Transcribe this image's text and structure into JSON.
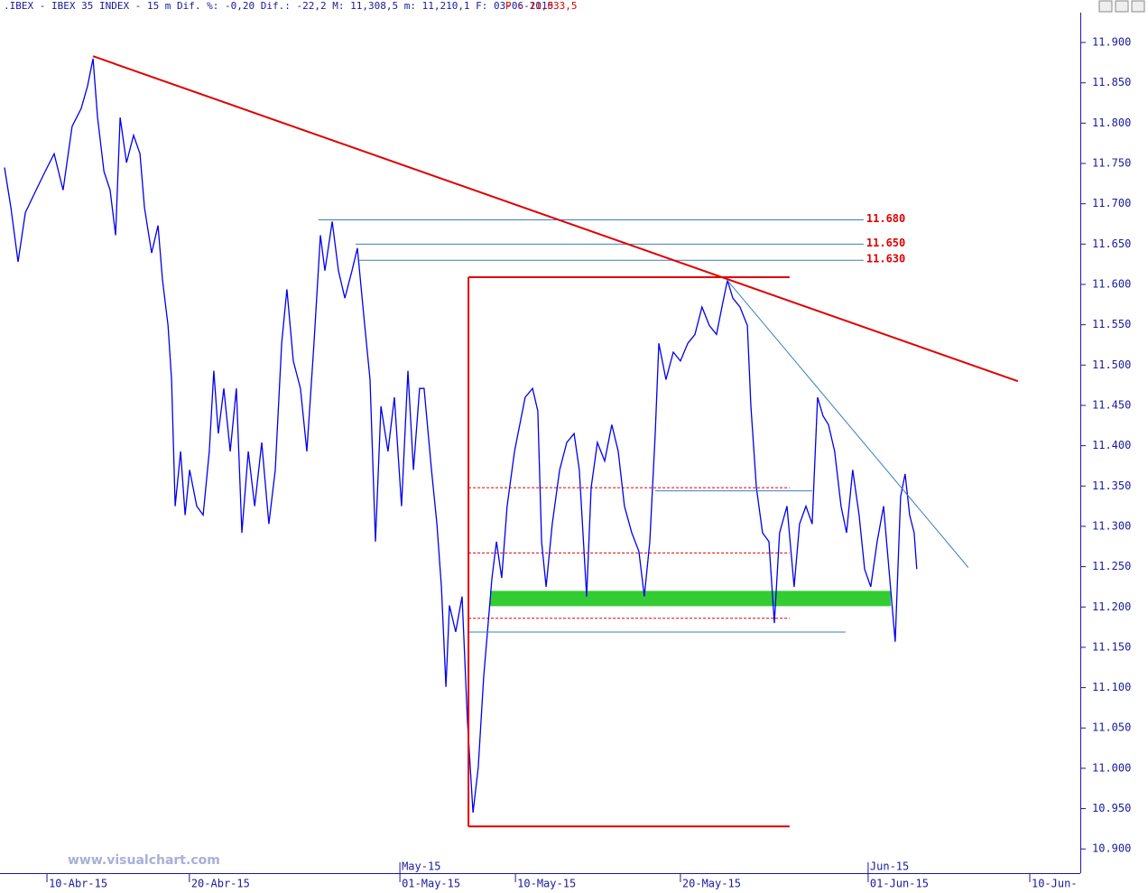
{
  "chart_data": {
    "type": "line",
    "title": ".IBEX - IBEX 35 INDEX -  15 m Dif. %: -0,20 Dif.: -22,2 M: 11,308,5 m: 11,210,1 F: 03-06-2015",
    "price_label": "P : 11,033,5",
    "watermark": "www.visualchart.com",
    "color": "#0000ee",
    "x": [
      -1.79,
      -1.52,
      -1.22,
      -0.91,
      -0.46,
      -0.08,
      0.3,
      0.68,
      1.06,
      1.44,
      1.71,
      1.94,
      2.13,
      2.4,
      2.66,
      2.89,
      3.08,
      3.35,
      3.65,
      3.92,
      4.11,
      4.41,
      4.68,
      4.87,
      5.1,
      5.25,
      5.4,
      5.63,
      5.82,
      6.01,
      6.31,
      6.58,
      6.84,
      7.03,
      7.22,
      7.45,
      7.72,
      7.98,
      8.21,
      8.48,
      8.75,
      9.05,
      9.35,
      9.62,
      9.89,
      10.11,
      10.38,
      10.68,
      10.95,
      11.25,
      11.52,
      11.71,
      12.02,
      12.28,
      12.55,
      12.85,
      13.08,
      13.35,
      13.61,
      13.84,
      14.07,
      14.37,
      14.64,
      14.94,
      15.21,
      15.44,
      15.7,
      15.89,
      16.2,
      16.43,
      16.62,
      16.81,
      16.96,
      17.22,
      17.49,
      17.72,
      17.95,
      18.17,
      18.4,
      18.56,
      18.75,
      18.94,
      19.16,
      19.39,
      19.7,
      19.92,
      20.15,
      20.46,
      20.68,
      20.84,
      21.03,
      21.29,
      21.6,
      21.9,
      22.21,
      22.43,
      22.74,
      22.93,
      23.19,
      23.5,
      23.8,
      24.07,
      24.33,
      24.64,
      24.94,
      25.17,
      25.4,
      25.63,
      25.78,
      26.08,
      26.39,
      26.69,
      27.0,
      27.3,
      27.6,
      27.91,
      28.21,
      28.44,
      28.67,
      28.9,
      29.2,
      29.51,
      29.66,
      29.89,
      30.15,
      30.42,
      30.65,
      30.87,
      31.18,
      31.48,
      31.71,
      31.98,
      32.24,
      32.47,
      32.7,
      32.93,
      33.19,
      33.46,
      33.69,
      33.95,
      34.22,
      34.45,
      34.71,
      34.98,
      35.25,
      35.51,
      35.74,
      35.97,
      36.16,
      36.35,
      36.54,
      36.65
    ],
    "values": [
      11745,
      11695,
      11628,
      11689,
      11717,
      11740,
      11762,
      11717,
      11796,
      11818,
      11846,
      11880,
      11807,
      11740,
      11717,
      11661,
      11807,
      11751,
      11785,
      11762,
      11695,
      11639,
      11673,
      11605,
      11549,
      11482,
      11325,
      11393,
      11314,
      11370,
      11325,
      11314,
      11393,
      11493,
      11415,
      11471,
      11393,
      11471,
      11292,
      11393,
      11325,
      11404,
      11303,
      11370,
      11527,
      11594,
      11505,
      11471,
      11393,
      11527,
      11661,
      11617,
      11678,
      11617,
      11583,
      11617,
      11645,
      11561,
      11482,
      11281,
      11449,
      11393,
      11460,
      11325,
      11493,
      11370,
      11471,
      11471,
      11370,
      11303,
      11225,
      11101,
      11202,
      11169,
      11213,
      11057,
      10945,
      11001,
      11113,
      11169,
      11236,
      11281,
      11236,
      11325,
      11393,
      11426,
      11460,
      11471,
      11443,
      11281,
      11225,
      11303,
      11370,
      11404,
      11415,
      11370,
      11213,
      11348,
      11404,
      11381,
      11426,
      11393,
      11325,
      11292,
      11269,
      11213,
      11281,
      11415,
      11527,
      11482,
      11516,
      11505,
      11527,
      11538,
      11572,
      11549,
      11538,
      11572,
      11605,
      11583,
      11572,
      11549,
      11449,
      11348,
      11292,
      11281,
      11180,
      11292,
      11325,
      11225,
      11303,
      11325,
      11303,
      11460,
      11437,
      11426,
      11393,
      11325,
      11292,
      11370,
      11314,
      11247,
      11225,
      11281,
      11325,
      11236,
      11157,
      11337,
      11365,
      11314,
      11292,
      11247
    ],
    "xlim": [
      -1.98,
      43.54
    ],
    "ylim": [
      10870,
      11937
    ],
    "xticks": [
      {
        "value": 0,
        "label": "10-Abr-15"
      },
      {
        "value": 6,
        "label": "20-Abr-15"
      },
      {
        "value": 14.87,
        "label": "01-May-15"
      },
      {
        "value": 19.74,
        "label": "10-May-15"
      },
      {
        "value": 26.69,
        "label": "20-May-15"
      },
      {
        "value": 34.6,
        "label": "01-Jun-15"
      },
      {
        "value": 41.41,
        "label": "10-Jun-"
      }
    ],
    "month_ticks": [
      {
        "value": 14.87,
        "label": "May-15"
      },
      {
        "value": 34.6,
        "label": "Jun-15"
      }
    ],
    "yticks": [
      {
        "value": 10900,
        "label": "10.900"
      },
      {
        "value": 10950,
        "label": "10.950"
      },
      {
        "value": 11000,
        "label": "11.000"
      },
      {
        "value": 11050,
        "label": "11.050"
      },
      {
        "value": 11100,
        "label": "11.100"
      },
      {
        "value": 11150,
        "label": "11.150"
      },
      {
        "value": 11200,
        "label": "11.200"
      },
      {
        "value": 11250,
        "label": "11.250"
      },
      {
        "value": 11300,
        "label": "11.300"
      },
      {
        "value": 11350,
        "label": "11.350"
      },
      {
        "value": 11400,
        "label": "11.400"
      },
      {
        "value": 11450,
        "label": "11.450"
      },
      {
        "value": 11500,
        "label": "11.500"
      },
      {
        "value": 11550,
        "label": "11.550"
      },
      {
        "value": 11600,
        "label": "11.600"
      },
      {
        "value": 11650,
        "label": "11.650"
      },
      {
        "value": 11700,
        "label": "11.700"
      },
      {
        "value": 11750,
        "label": "11.750"
      },
      {
        "value": 11800,
        "label": "11.800"
      },
      {
        "value": 11850,
        "label": "11.850"
      },
      {
        "value": 11900,
        "label": "11.900"
      }
    ],
    "levels": [
      {
        "value": 11680,
        "label": "11.680",
        "from": 11.44,
        "to": 34.41
      },
      {
        "value": 11650,
        "label": "11.650",
        "from": 13.0,
        "to": 34.41
      },
      {
        "value": 11630,
        "label": "11.630",
        "from": 13.16,
        "to": 34.41
      }
    ],
    "zone": {
      "low": 11201,
      "high": 11220,
      "from": 18.67,
      "to": 35.55,
      "color": "#33cc33"
    },
    "segments": [
      {
        "x": [
          1.94,
          40.91
        ],
        "y": [
          11883,
          11480
        ],
        "color": "#e00000",
        "width": 2
      },
      {
        "x": [
          28.67,
          38.82
        ],
        "y": [
          11605,
          11249
        ],
        "color": "#3a7fc0",
        "width": 1
      },
      {
        "x": [
          17.76,
          17.76
        ],
        "y": [
          11609,
          10928
        ],
        "color": "#e00000",
        "width": 2
      },
      {
        "x": [
          17.76,
          31.29
        ],
        "y": [
          11609,
          11609
        ],
        "color": "#e00000",
        "width": 2
      },
      {
        "x": [
          17.76,
          31.29
        ],
        "y": [
          10928,
          10928
        ],
        "color": "#e00000",
        "width": 2
      },
      {
        "x": [
          17.76,
          33.65
        ],
        "y": [
          11169,
          11169
        ],
        "color": "#3a7fc0",
        "width": 1
      },
      {
        "x": [
          25.63,
          32.24
        ],
        "y": [
          11344,
          11344
        ],
        "color": "#3a7fc0",
        "width": 1
      }
    ],
    "dashed": [
      {
        "x": [
          17.76,
          31.29
        ],
        "y": [
          11348,
          11348
        ],
        "color": "#e00000"
      },
      {
        "x": [
          17.76,
          31.29
        ],
        "y": [
          11267,
          11267
        ],
        "color": "#e00000"
      },
      {
        "x": [
          17.76,
          31.29
        ],
        "y": [
          11186,
          11186
        ],
        "color": "#e00000"
      }
    ]
  }
}
